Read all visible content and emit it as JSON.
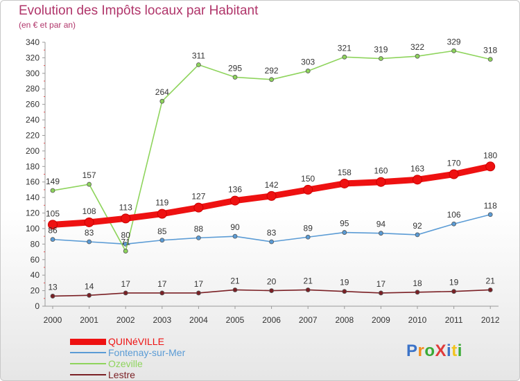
{
  "title": "Evolution des Impôts locaux par Habitant",
  "subtitle": "(en € et par an)",
  "logo": {
    "text": "ProXiti",
    "letter_colors": [
      "#3b73c8",
      "#f28c1c",
      "#3aaa35",
      "#e03a3a",
      "#3b73c8",
      "#f2c31c",
      "#3aaa35"
    ]
  },
  "chart_data": {
    "type": "line",
    "categories": [
      "2000",
      "2001",
      "2002",
      "2003",
      "2004",
      "2005",
      "2006",
      "2007",
      "2008",
      "2009",
      "2010",
      "2011",
      "2012"
    ],
    "ylim": [
      0,
      340
    ],
    "yticks": [
      0,
      20,
      40,
      60,
      80,
      100,
      120,
      140,
      160,
      180,
      200,
      220,
      240,
      260,
      280,
      300,
      320,
      340
    ],
    "grid": false,
    "series": [
      {
        "name": "QUINéVILLE",
        "color": "#ee1111",
        "values": [
          105,
          108,
          113,
          119,
          127,
          136,
          142,
          150,
          158,
          160,
          163,
          170,
          180
        ]
      },
      {
        "name": "Fontenay-sur-Mer",
        "color": "#5a9bd5",
        "values": [
          86,
          83,
          80,
          85,
          88,
          90,
          83,
          89,
          95,
          94,
          92,
          106,
          118
        ]
      },
      {
        "name": "Ozeville",
        "color": "#8ed45c",
        "values": [
          149,
          157,
          71,
          264,
          311,
          295,
          292,
          303,
          321,
          319,
          322,
          329,
          318
        ]
      },
      {
        "name": "Lestre",
        "color": "#7a1f24",
        "values": [
          13,
          14,
          17,
          17,
          17,
          21,
          20,
          21,
          19,
          17,
          18,
          19,
          21
        ]
      }
    ]
  }
}
